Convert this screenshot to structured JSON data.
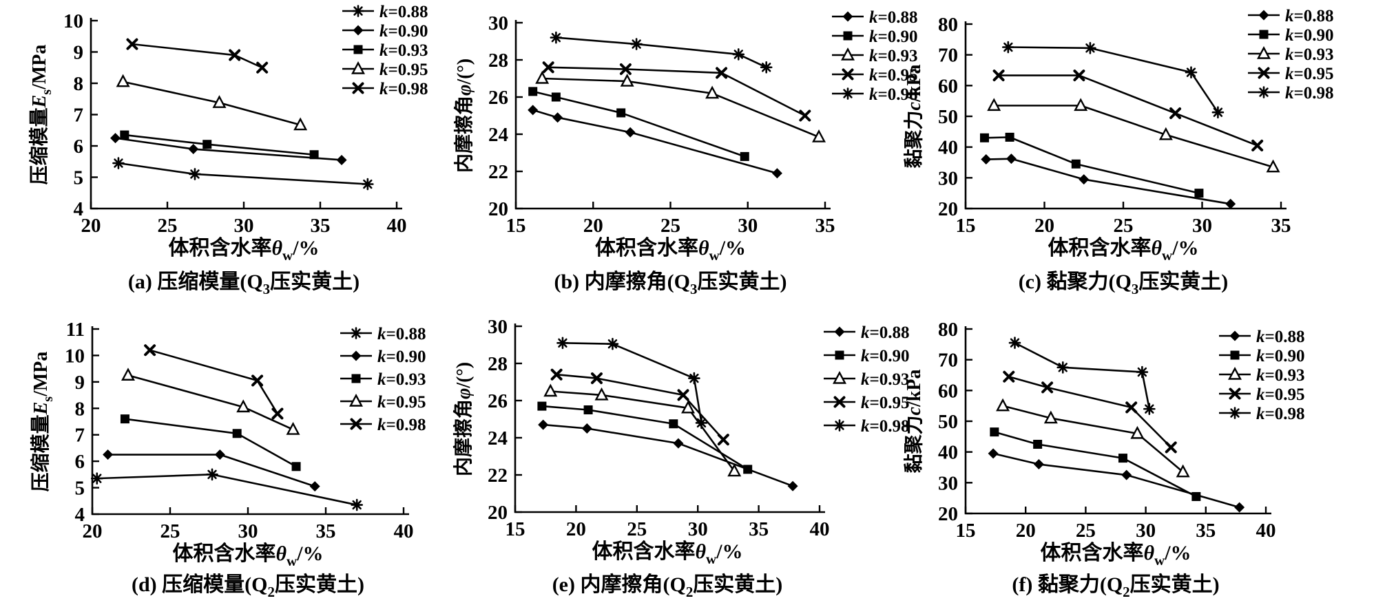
{
  "figure": {
    "background": "#ffffff",
    "ink": "#000000",
    "legend_labels": [
      "k=0.88",
      "k=0.90",
      "k=0.93",
      "k=0.95",
      "k=0.98"
    ],
    "xlabel": {
      "pre": "体积含水率",
      "sym": "θ",
      "sub": "w",
      "post": "/%"
    }
  },
  "chart_data": [
    {
      "id": "a",
      "type": "line",
      "caption": {
        "tag": "(a)",
        "pre": "压缩模量(Q",
        "sub": "3",
        "post": "压实黄土)"
      },
      "ylabel": {
        "pre": "压缩模量",
        "sym": "E",
        "sub": "s",
        "post": "/MPa"
      },
      "xlim": [
        20,
        40
      ],
      "xstep": 5,
      "ylim": [
        4,
        10
      ],
      "ystep": 1,
      "series": [
        {
          "name": "k=0.88",
          "marker": "star8",
          "points": [
            [
              21.8,
              5.45
            ],
            [
              26.8,
              5.1
            ],
            [
              38.1,
              4.78
            ]
          ]
        },
        {
          "name": "k=0.90",
          "marker": "diamond",
          "points": [
            [
              21.6,
              6.25
            ],
            [
              26.7,
              5.9
            ],
            [
              36.4,
              5.55
            ]
          ]
        },
        {
          "name": "k=0.93",
          "marker": "square",
          "points": [
            [
              22.2,
              6.35
            ],
            [
              27.6,
              6.05
            ],
            [
              34.6,
              5.72
            ]
          ]
        },
        {
          "name": "k=0.95",
          "marker": "triangle",
          "points": [
            [
              22.1,
              8.05
            ],
            [
              28.4,
              7.38
            ],
            [
              33.7,
              6.67
            ]
          ]
        },
        {
          "name": "k=0.98",
          "marker": "x",
          "points": [
            [
              22.7,
              9.25
            ],
            [
              29.4,
              8.9
            ],
            [
              31.2,
              8.5
            ]
          ]
        }
      ]
    },
    {
      "id": "b",
      "type": "line",
      "caption": {
        "tag": "(b)",
        "pre": "内摩擦角(Q",
        "sub": "3",
        "post": "压实黄土)"
      },
      "ylabel": {
        "pre": "内摩擦角",
        "sym": "φ",
        "sub": "",
        "post": "/(°)"
      },
      "xlim": [
        15,
        35
      ],
      "xstep": 5,
      "ylim": [
        20,
        30
      ],
      "ystep": 2,
      "series": [
        {
          "name": "k=0.88",
          "marker": "diamond",
          "points": [
            [
              16.1,
              25.3
            ],
            [
              17.7,
              24.9
            ],
            [
              22.4,
              24.1
            ],
            [
              31.9,
              21.9
            ]
          ]
        },
        {
          "name": "k=0.90",
          "marker": "square",
          "points": [
            [
              16.1,
              26.3
            ],
            [
              17.6,
              26.0
            ],
            [
              21.8,
              25.15
            ],
            [
              29.8,
              22.8
            ]
          ]
        },
        {
          "name": "k=0.93",
          "marker": "triangle",
          "points": [
            [
              16.7,
              27.0
            ],
            [
              22.2,
              26.85
            ],
            [
              27.7,
              26.2
            ],
            [
              34.6,
              23.85
            ]
          ]
        },
        {
          "name": "k=0.95",
          "marker": "x",
          "points": [
            [
              17.1,
              27.6
            ],
            [
              22.1,
              27.5
            ],
            [
              28.3,
              27.3
            ],
            [
              33.7,
              25.0
            ]
          ]
        },
        {
          "name": "k=0.98",
          "marker": "star8",
          "points": [
            [
              17.6,
              29.2
            ],
            [
              22.8,
              28.85
            ],
            [
              29.4,
              28.3
            ],
            [
              31.2,
              27.6
            ]
          ]
        }
      ]
    },
    {
      "id": "c",
      "type": "line",
      "caption": {
        "tag": "(c)",
        "pre": "黏聚力(Q",
        "sub": "3",
        "post": "压实黄土)"
      },
      "ylabel": {
        "pre": "黏聚力",
        "sym": "c",
        "sub": "",
        "post": "/kPa"
      },
      "xlim": [
        15,
        35
      ],
      "xstep": 5,
      "ylim": [
        20,
        80
      ],
      "ystep": 10,
      "series": [
        {
          "name": "k=0.88",
          "marker": "diamond",
          "points": [
            [
              16.3,
              36.0
            ],
            [
              17.9,
              36.2
            ],
            [
              22.5,
              29.5
            ],
            [
              31.8,
              21.5
            ]
          ]
        },
        {
          "name": "k=0.90",
          "marker": "square",
          "points": [
            [
              16.2,
              43.0
            ],
            [
              17.8,
              43.2
            ],
            [
              22.0,
              34.5
            ],
            [
              29.8,
              25.0
            ]
          ]
        },
        {
          "name": "k=0.93",
          "marker": "triangle",
          "points": [
            [
              16.8,
              53.5
            ],
            [
              22.3,
              53.5
            ],
            [
              27.7,
              44.0
            ],
            [
              34.5,
              33.5
            ]
          ]
        },
        {
          "name": "k=0.95",
          "marker": "x",
          "points": [
            [
              17.1,
              63.3
            ],
            [
              22.2,
              63.3
            ],
            [
              28.3,
              51.0
            ],
            [
              33.5,
              40.5
            ]
          ]
        },
        {
          "name": "k=0.98",
          "marker": "star8",
          "points": [
            [
              17.7,
              72.5
            ],
            [
              22.9,
              72.2
            ],
            [
              29.3,
              64.3
            ],
            [
              31.0,
              51.3
            ]
          ]
        }
      ]
    },
    {
      "id": "d",
      "type": "line",
      "caption": {
        "tag": "(d)",
        "pre": "压缩模量(Q",
        "sub": "2",
        "post": "压实黄土)"
      },
      "ylabel": {
        "pre": "压缩模量",
        "sym": "E",
        "sub": "s",
        "post": "/MPa"
      },
      "xlim": [
        20,
        40
      ],
      "xstep": 5,
      "ylim": [
        4,
        11
      ],
      "ystep": 1,
      "series": [
        {
          "name": "k=0.88",
          "marker": "star8",
          "points": [
            [
              20.3,
              5.35
            ],
            [
              27.7,
              5.5
            ],
            [
              37.0,
              4.35
            ]
          ]
        },
        {
          "name": "k=0.90",
          "marker": "diamond",
          "points": [
            [
              21.0,
              6.25
            ],
            [
              28.2,
              6.25
            ],
            [
              34.3,
              5.05
            ]
          ]
        },
        {
          "name": "k=0.93",
          "marker": "square",
          "points": [
            [
              22.1,
              7.6
            ],
            [
              29.3,
              7.05
            ],
            [
              33.1,
              5.8
            ]
          ]
        },
        {
          "name": "k=0.95",
          "marker": "triangle",
          "points": [
            [
              22.3,
              9.25
            ],
            [
              29.7,
              8.05
            ],
            [
              32.9,
              7.2
            ]
          ]
        },
        {
          "name": "k=0.98",
          "marker": "x",
          "points": [
            [
              23.7,
              10.2
            ],
            [
              30.6,
              9.05
            ],
            [
              31.9,
              7.8
            ]
          ]
        }
      ]
    },
    {
      "id": "e",
      "type": "line",
      "caption": {
        "tag": "(e)",
        "pre": "内摩擦角(Q",
        "sub": "2",
        "post": "压实黄土)"
      },
      "ylabel": {
        "pre": "内摩擦角",
        "sym": "φ",
        "sub": "",
        "post": "/(°)"
      },
      "xlim": [
        15,
        40
      ],
      "xstep": 5,
      "ylim": [
        20,
        30
      ],
      "ystep": 2,
      "series": [
        {
          "name": "k=0.88",
          "marker": "diamond",
          "points": [
            [
              17.3,
              24.7
            ],
            [
              20.9,
              24.5
            ],
            [
              28.4,
              23.7
            ],
            [
              37.8,
              21.4
            ]
          ]
        },
        {
          "name": "k=0.90",
          "marker": "square",
          "points": [
            [
              17.2,
              25.7
            ],
            [
              21.0,
              25.5
            ],
            [
              28.0,
              24.75
            ],
            [
              34.1,
              22.3
            ]
          ]
        },
        {
          "name": "k=0.93",
          "marker": "triangle",
          "points": [
            [
              17.9,
              26.5
            ],
            [
              22.1,
              26.3
            ],
            [
              29.2,
              25.6
            ],
            [
              33.0,
              22.2
            ]
          ]
        },
        {
          "name": "k=0.95",
          "marker": "x",
          "points": [
            [
              18.4,
              27.4
            ],
            [
              21.7,
              27.2
            ],
            [
              28.8,
              26.3
            ],
            [
              32.1,
              23.9
            ]
          ]
        },
        {
          "name": "k=0.98",
          "marker": "star8",
          "points": [
            [
              18.9,
              29.1
            ],
            [
              23.0,
              29.05
            ],
            [
              29.7,
              27.2
            ],
            [
              30.3,
              24.8
            ]
          ]
        }
      ]
    },
    {
      "id": "f",
      "type": "line",
      "caption": {
        "tag": "(f)",
        "pre": "黏聚力(Q",
        "sub": "2",
        "post": "压实黄土)"
      },
      "ylabel": {
        "pre": "黏聚力",
        "sym": "c",
        "sub": "",
        "post": "/kPa"
      },
      "xlim": [
        15,
        40
      ],
      "xstep": 5,
      "ylim": [
        20,
        80
      ],
      "ystep": 10,
      "series": [
        {
          "name": "k=0.88",
          "marker": "diamond",
          "points": [
            [
              17.3,
              39.5
            ],
            [
              21.1,
              36.0
            ],
            [
              28.4,
              32.5
            ],
            [
              37.8,
              22.0
            ]
          ]
        },
        {
          "name": "k=0.90",
          "marker": "square",
          "points": [
            [
              17.4,
              46.5
            ],
            [
              21.0,
              42.5
            ],
            [
              28.1,
              38.0
            ],
            [
              34.2,
              25.5
            ]
          ]
        },
        {
          "name": "k=0.93",
          "marker": "triangle",
          "points": [
            [
              18.1,
              55.0
            ],
            [
              22.1,
              51.0
            ],
            [
              29.3,
              46.0
            ],
            [
              33.1,
              33.5
            ]
          ]
        },
        {
          "name": "k=0.95",
          "marker": "x",
          "points": [
            [
              18.6,
              64.5
            ],
            [
              21.8,
              61.0
            ],
            [
              28.8,
              54.5
            ],
            [
              32.1,
              41.5
            ]
          ]
        },
        {
          "name": "k=0.98",
          "marker": "star8",
          "points": [
            [
              19.1,
              75.5
            ],
            [
              23.1,
              67.5
            ],
            [
              29.7,
              66.0
            ],
            [
              30.3,
              54.0
            ]
          ]
        }
      ]
    }
  ]
}
